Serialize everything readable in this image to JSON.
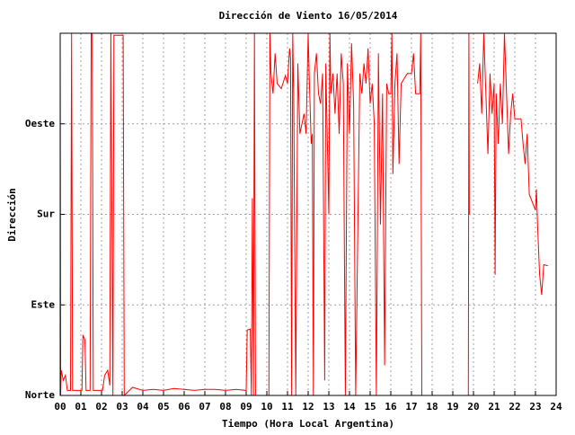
{
  "chart_data": {
    "type": "line",
    "title": "Dirección de Viento 16/05/2014",
    "xlabel": "Tiempo (Hora Local Argentina)",
    "ylabel": "Dirección",
    "xlim": [
      0,
      24
    ],
    "xticks": [
      {
        "value": 0,
        "label": "00"
      },
      {
        "value": 1,
        "label": "01"
      },
      {
        "value": 2,
        "label": "02"
      },
      {
        "value": 3,
        "label": "03"
      },
      {
        "value": 4,
        "label": "04"
      },
      {
        "value": 5,
        "label": "05"
      },
      {
        "value": 6,
        "label": "06"
      },
      {
        "value": 7,
        "label": "07"
      },
      {
        "value": 8,
        "label": "08"
      },
      {
        "value": 9,
        "label": "09"
      },
      10,
      11,
      12,
      13,
      14,
      15,
      16,
      17,
      18,
      19,
      20,
      21,
      22,
      23,
      24
    ],
    "ylim": [
      0,
      360
    ],
    "yticks": [
      {
        "value": 0,
        "label": "Norte"
      },
      {
        "value": 90,
        "label": "Este"
      },
      {
        "value": 180,
        "label": "Sur"
      },
      {
        "value": 270,
        "label": "Oeste"
      }
    ],
    "grid": true,
    "series": [
      {
        "color": "#ff0000",
        "x": [
          0.0,
          0.02,
          0.05,
          0.15,
          0.25,
          0.35,
          0.5,
          0.55,
          0.6,
          1.05,
          1.1,
          1.2,
          1.25,
          1.45,
          1.5,
          1.55,
          1.6,
          2.05,
          2.15,
          2.3,
          2.4,
          2.45,
          2.55,
          2.6,
          3.05,
          3.1,
          3.5,
          4.0,
          4.5,
          5.0,
          5.5,
          6.0,
          6.5,
          7.0,
          7.5,
          8.0,
          8.5,
          9.0,
          9.05,
          9.2,
          9.25,
          9.3,
          9.35,
          9.4,
          9.45,
          10.1,
          10.15,
          10.2,
          10.3,
          10.4,
          10.5,
          10.7,
          10.9,
          11.0,
          11.1,
          11.15,
          11.2,
          11.25,
          11.3,
          11.4,
          11.5,
          11.6,
          11.8,
          11.9,
          12.0,
          12.05,
          12.15,
          12.2,
          12.25,
          12.3,
          12.4,
          12.5,
          12.6,
          12.7,
          12.8,
          12.85,
          13.0,
          13.05,
          13.1,
          13.2,
          13.3,
          13.4,
          13.5,
          13.6,
          13.7,
          13.8,
          13.9,
          14.0,
          14.1,
          14.2,
          14.3,
          14.4,
          14.5,
          14.6,
          14.7,
          14.8,
          14.9,
          15.0,
          15.1,
          15.2,
          15.3,
          15.4,
          15.5,
          15.6,
          15.7,
          15.8,
          15.9,
          16.0,
          16.05,
          16.1,
          16.2,
          16.3,
          16.4,
          16.5,
          16.8,
          17.0,
          17.1,
          17.2,
          17.4,
          17.45,
          17.5,
          18.6,
          19.75,
          19.78,
          19.8,
          20.0,
          20.2,
          20.3,
          20.4,
          20.5,
          20.6,
          20.7,
          20.8,
          20.9,
          21.0,
          21.05,
          21.1,
          21.2,
          21.3,
          21.4,
          21.5,
          21.6,
          21.7,
          21.8,
          21.9,
          22.0,
          22.3,
          22.4,
          22.5,
          22.6,
          22.7,
          23.0,
          23.05,
          23.1,
          23.2,
          23.3,
          23.4,
          23.6
        ],
        "values": [
          360,
          0,
          25,
          15,
          20,
          5,
          5,
          360,
          5,
          5,
          60,
          55,
          5,
          5,
          360,
          360,
          5,
          5,
          20,
          25,
          10,
          360,
          0,
          358,
          358,
          0,
          8,
          5,
          6,
          5,
          7,
          6,
          5,
          6,
          6,
          5,
          6,
          5,
          65,
          66,
          0,
          196,
          0,
          360,
          0,
          0,
          360,
          320,
          300,
          340,
          310,
          305,
          318,
          310,
          345,
          335,
          0,
          360,
          300,
          0,
          330,
          260,
          280,
          260,
          360,
          320,
          250,
          260,
          0,
          320,
          340,
          300,
          290,
          320,
          15,
          330,
          180,
          360,
          300,
          320,
          280,
          320,
          260,
          340,
          310,
          0,
          330,
          260,
          350,
          290,
          0,
          160,
          320,
          300,
          330,
          310,
          345,
          290,
          310,
          270,
          0,
          340,
          170,
          300,
          30,
          310,
          300,
          300,
          360,
          220,
          310,
          340,
          230,
          310,
          320,
          320,
          340,
          300,
          300,
          360,
          0,
          null,
          0,
          360,
          180,
          null,
          310,
          330,
          280,
          360,
          300,
          240,
          320,
          280,
          310,
          120,
          300,
          250,
          310,
          270,
          360,
          300,
          240,
          280,
          300,
          275,
          275,
          250,
          230,
          260,
          200,
          184,
          205,
          170,
          120,
          100,
          130,
          129
        ]
      }
    ]
  }
}
